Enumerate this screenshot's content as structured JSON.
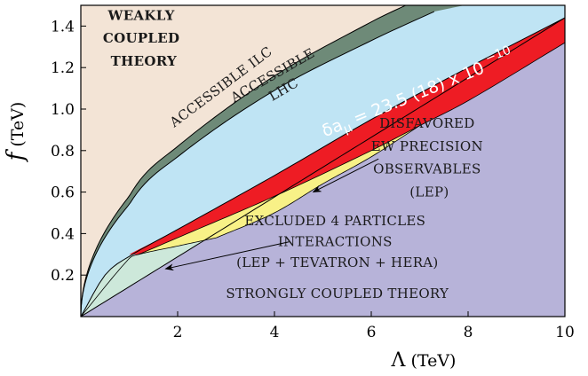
{
  "chart_data": {
    "type": "area",
    "title": "",
    "xlabel": "Λ (TeV)",
    "ylabel": "f (TeV)",
    "xlim": [
      0,
      10
    ],
    "ylim": [
      0,
      1.5
    ],
    "x_ticks": [
      "2",
      "4",
      "6",
      "8",
      "10"
    ],
    "y_ticks": [
      "0.2",
      "0.4",
      "0.6",
      "0.8",
      "1.0",
      "1.2",
      "1.4"
    ],
    "x_tick_values": [
      2,
      4,
      6,
      8,
      10
    ],
    "y_tick_values": [
      0.2,
      0.4,
      0.6,
      0.8,
      1.0,
      1.2,
      1.4
    ],
    "grid": false,
    "colors": {
      "weakly_coupled": "#f3e4d6",
      "accessible_ilc": "#6e8a78",
      "accessible_lhc": "#bfe4f4",
      "muon_band": "#ee1c24",
      "ew_disfavored": "#f8f187",
      "four_particle_excluded": "#cde8da",
      "strongly_coupled": "#b7b3d9"
    },
    "boundaries": {
      "ilc_upper": {
        "shape": "sqrt",
        "x": [
          0,
          1,
          2,
          4,
          6,
          6.8
        ],
        "y": [
          0,
          0.58,
          0.82,
          1.16,
          1.42,
          1.51
        ]
      },
      "ilc_lower": {
        "shape": "sqrt",
        "x": [
          0,
          1,
          2,
          4,
          6,
          7.3
        ],
        "y": [
          0,
          0.54,
          0.77,
          1.09,
          1.33,
          1.47
        ]
      },
      "lhc_upper": {
        "shape": "curve",
        "x": [
          0,
          0.5,
          1,
          2,
          4,
          6,
          8,
          9.5,
          10
        ],
        "y": [
          0,
          0.2,
          0.29,
          0.42,
          0.68,
          0.95,
          1.2,
          1.38,
          1.44
        ]
      },
      "muon_band_upper": {
        "shape": "curve",
        "x": [
          1,
          2,
          4,
          6,
          8,
          9.5,
          10
        ],
        "y": [
          0.3,
          0.42,
          0.68,
          0.95,
          1.2,
          1.38,
          1.44
        ]
      },
      "muon_band_lower": {
        "shape": "curve",
        "x": [
          1.2,
          2,
          4,
          6,
          7,
          8,
          10
        ],
        "y": [
          0.3,
          0.38,
          0.58,
          0.8,
          0.92,
          1.04,
          1.32
        ]
      },
      "ew_lower": {
        "shape": "curve",
        "x": [
          2.8,
          4,
          5,
          6,
          7
        ],
        "y": [
          0.38,
          0.5,
          0.64,
          0.77,
          0.92
        ]
      },
      "four_particle_upper": {
        "shape": "curve",
        "x": [
          0,
          1,
          1.2,
          2,
          2.8
        ],
        "y": [
          0,
          0.28,
          0.3,
          0.34,
          0.38
        ]
      },
      "strong_upper": {
        "shape": "line",
        "x": [
          0,
          10
        ],
        "y": [
          0,
          1.44
        ]
      }
    },
    "annotations": [
      {
        "id": "weakly",
        "lines": [
          "WEAKLY",
          "COUPLED",
          "THEORY"
        ],
        "x": 1.3,
        "y": [
          1.43,
          1.32,
          1.21
        ]
      },
      {
        "id": "ilc",
        "lines": [
          "ACCESSIBLE  ILC"
        ],
        "x": 2.95,
        "y": [
          1.09
        ],
        "angle": -37
      },
      {
        "id": "lhc",
        "lines": [
          "ACCESSIBLE",
          "LHC"
        ],
        "x": 4.05,
        "y": [
          1.15,
          1.05
        ],
        "angle": -30
      },
      {
        "id": "muon",
        "lines": [
          "δaμ = 23.5 (18) x 10 −10"
        ],
        "x": 7.0,
        "y": [
          1.05
        ],
        "angle": -22
      },
      {
        "id": "ew",
        "lines": [
          "DISFAVORED",
          "EW PRECISION",
          "OBSERVABLES",
          "(LEP)"
        ],
        "x": 7.2,
        "y": [
          0.91,
          0.8,
          0.69,
          0.58
        ]
      },
      {
        "id": "four",
        "lines": [
          "EXCLUDED  4 PARTICLES",
          "INTERACTIONS",
          "(LEP + TEVATRON + HERA)"
        ],
        "x": 5.3,
        "y": [
          0.44,
          0.34,
          0.24
        ]
      },
      {
        "id": "strong",
        "lines": [
          "STRONGLY COUPLED THEORY"
        ],
        "x": 5.3,
        "y": [
          0.09
        ]
      }
    ],
    "arrows": [
      {
        "id": "ew-arrow",
        "from": [
          6.15,
          0.76
        ],
        "to": [
          4.8,
          0.6
        ]
      },
      {
        "id": "four-arrow",
        "from": [
          4.3,
          0.36
        ],
        "to": [
          1.75,
          0.23
        ]
      }
    ]
  },
  "labels": {
    "weakly": [
      "WEAKLY",
      "COUPLED",
      "THEORY"
    ],
    "ilc": "ACCESSIBLE  ILC",
    "lhc": [
      "ACCESSIBLE",
      "LHC"
    ],
    "muon": {
      "prefix": "δa",
      "sub": "μ",
      "main": " = 23.5 (18) x 10 ",
      "exp": "−10"
    },
    "ew": [
      "DISFAVORED",
      "EW PRECISION",
      "OBSERVABLES",
      "(LEP)"
    ],
    "four": [
      "EXCLUDED  4 PARTICLES",
      "INTERACTIONS",
      "(LEP + TEVATRON + HERA)"
    ],
    "strong": "STRONGLY COUPLED THEORY",
    "x_axis": {
      "symbol": "Λ",
      "unit": " (TeV)"
    },
    "y_axis": {
      "symbol": "f",
      "unit": " (TeV)"
    }
  }
}
